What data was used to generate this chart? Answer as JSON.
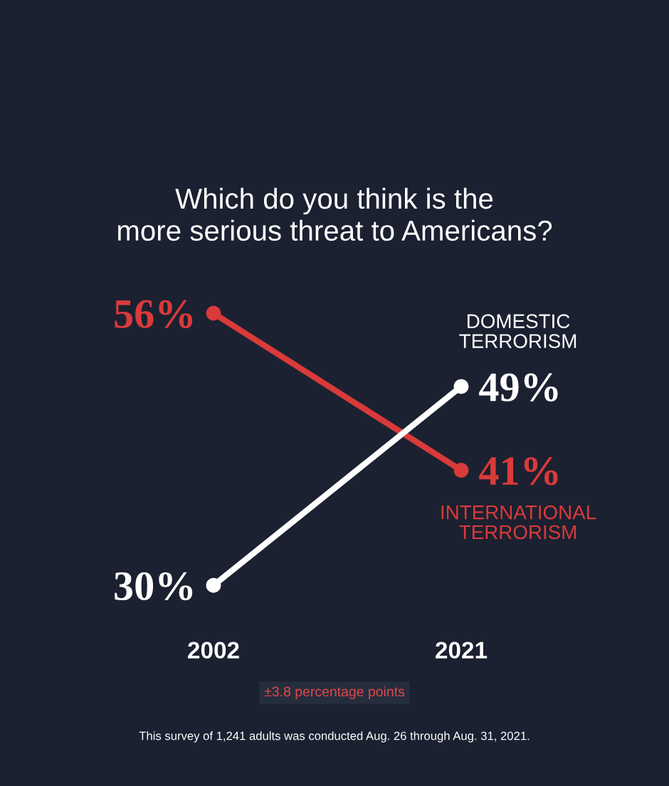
{
  "chart_data": {
    "type": "line",
    "title": "Which do you think is the\nmore serious threat to Americans?",
    "categories": [
      "2002",
      "2021"
    ],
    "series": [
      {
        "name": "INTERNATIONAL\nTERRORISM",
        "color": "#d93a3a",
        "values": [
          56,
          41
        ],
        "value_labels": [
          "56%",
          "41%"
        ]
      },
      {
        "name": "DOMESTIC\nTERRORISM",
        "color": "#ffffff",
        "values": [
          30,
          49
        ],
        "value_labels": [
          "30%",
          "49%"
        ]
      }
    ],
    "marker": "circle",
    "line_style": "solid",
    "grid": false,
    "legend": false,
    "tick_labels": "x",
    "annotations": [
      "±3.8 percentage points",
      "This survey of 1,241 adults was conducted Aug. 26 through Aug. 31, 2021."
    ]
  }
}
